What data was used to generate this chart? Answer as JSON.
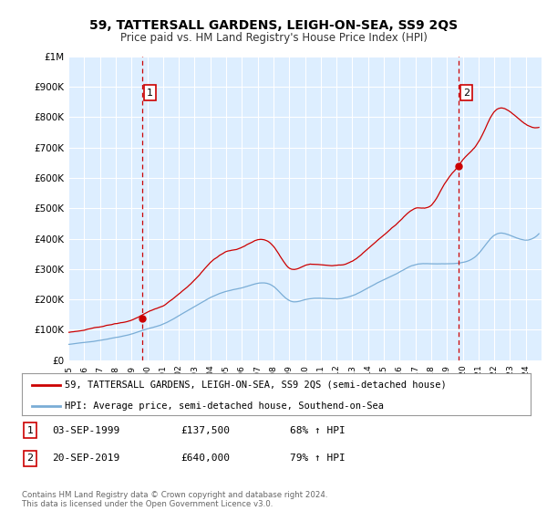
{
  "title": "59, TATTERSALL GARDENS, LEIGH-ON-SEA, SS9 2QS",
  "subtitle": "Price paid vs. HM Land Registry's House Price Index (HPI)",
  "legend_line1": "59, TATTERSALL GARDENS, LEIGH-ON-SEA, SS9 2QS (semi-detached house)",
  "legend_line2": "HPI: Average price, semi-detached house, Southend-on-Sea",
  "footer": "Contains HM Land Registry data © Crown copyright and database right 2024.\nThis data is licensed under the Open Government Licence v3.0.",
  "sale1_label": "1",
  "sale1_date": "03-SEP-1999",
  "sale1_price": "£137,500",
  "sale1_hpi": "68% ↑ HPI",
  "sale2_label": "2",
  "sale2_date": "20-SEP-2019",
  "sale2_price": "£640,000",
  "sale2_hpi": "79% ↑ HPI",
  "red_color": "#cc0000",
  "blue_color": "#7aadd6",
  "bg_color": "#ddeeff",
  "grid_color": "#ffffff",
  "dashed_color": "#cc0000",
  "ylim": [
    0,
    1000000
  ],
  "yticks": [
    0,
    100000,
    200000,
    300000,
    400000,
    500000,
    600000,
    700000,
    800000,
    900000,
    1000000
  ],
  "ytick_labels": [
    "£0",
    "£100K",
    "£200K",
    "£300K",
    "£400K",
    "£500K",
    "£600K",
    "£700K",
    "£800K",
    "£900K",
    "£1M"
  ],
  "xmin": 1995.0,
  "xmax": 2025.0,
  "sale1_x": 1999.67,
  "sale1_y": 137500,
  "sale2_x": 2019.72,
  "sale2_y": 640000
}
